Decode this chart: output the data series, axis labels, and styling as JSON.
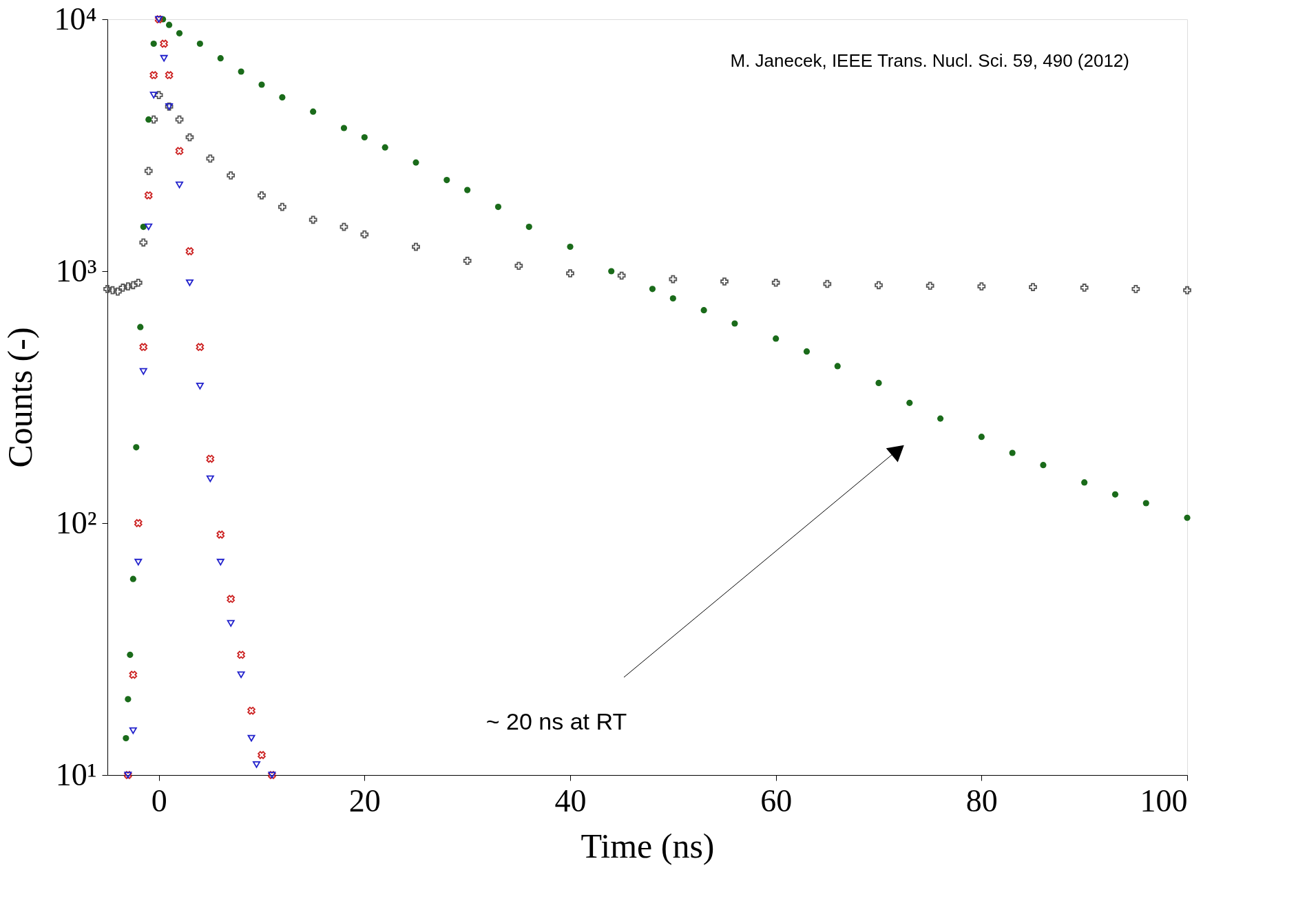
{
  "chart_data": {
    "type": "scatter",
    "xlabel": "Time (ns)",
    "ylabel": "Counts (-)",
    "xlim": [
      -5,
      100
    ],
    "xticks": [
      0,
      20,
      40,
      60,
      80,
      100
    ],
    "ylim": [
      10,
      10000
    ],
    "yticks": [
      {
        "value": 10,
        "label": "10¹"
      },
      {
        "value": 100,
        "label": "10²"
      },
      {
        "value": 1000,
        "label": "10³"
      },
      {
        "value": 10000,
        "label": "10⁴"
      }
    ],
    "log": "y",
    "grid": false,
    "series": [
      {
        "color": "#555555",
        "marker": "cross",
        "x": [
          -5,
          -4.5,
          -4,
          -3.5,
          -3,
          -2.5,
          -2,
          -1.5,
          -1,
          -0.5,
          0,
          1,
          2,
          3,
          5,
          7,
          10,
          12,
          15,
          18,
          20,
          25,
          30,
          35,
          40,
          45,
          50,
          55,
          60,
          65,
          70,
          75,
          80,
          85,
          90,
          95,
          100
        ],
        "values": [
          850,
          840,
          830,
          860,
          870,
          880,
          900,
          1300,
          2500,
          4000,
          5000,
          4500,
          4000,
          3400,
          2800,
          2400,
          2000,
          1800,
          1600,
          1500,
          1400,
          1250,
          1100,
          1050,
          980,
          960,
          930,
          910,
          900,
          890,
          880,
          875,
          870,
          865,
          860,
          850,
          840
        ]
      },
      {
        "color": "#1a6b1a",
        "marker": "circle",
        "x": [
          -3.2,
          -3,
          -2.8,
          -2.5,
          -2.2,
          -1.8,
          -1.5,
          -1,
          -0.5,
          0.4,
          1,
          2,
          4,
          6,
          8,
          10,
          12,
          15,
          18,
          20,
          22,
          25,
          28,
          30,
          33,
          36,
          40,
          44,
          48,
          50,
          53,
          56,
          60,
          63,
          66,
          70,
          73,
          76,
          80,
          83,
          86,
          90,
          93,
          96,
          100
        ],
        "values": [
          14,
          20,
          30,
          60,
          200,
          600,
          1500,
          4000,
          8000,
          10000,
          9500,
          8800,
          8000,
          7000,
          6200,
          5500,
          4900,
          4300,
          3700,
          3400,
          3100,
          2700,
          2300,
          2100,
          1800,
          1500,
          1250,
          1000,
          850,
          780,
          700,
          620,
          540,
          480,
          420,
          360,
          300,
          260,
          220,
          190,
          170,
          145,
          130,
          120,
          105
        ]
      },
      {
        "color": "#cc2222",
        "marker": "x",
        "x": [
          -3,
          -2.5,
          -2,
          -1.5,
          -1,
          -0.5,
          0,
          0.5,
          1,
          2,
          3,
          4,
          5,
          6,
          7,
          8,
          9,
          10,
          11
        ],
        "values": [
          10,
          25,
          100,
          500,
          2000,
          6000,
          10000,
          8000,
          6000,
          3000,
          1200,
          500,
          180,
          90,
          50,
          30,
          18,
          12,
          10
        ]
      },
      {
        "color": "#2222cc",
        "marker": "triangle",
        "x": [
          -3,
          -2.5,
          -2,
          -1.5,
          -1,
          -0.5,
          0,
          0.5,
          1,
          2,
          3,
          4,
          5,
          6,
          7,
          8,
          9,
          9.5,
          11
        ],
        "values": [
          10,
          15,
          70,
          400,
          1500,
          5000,
          10000,
          7000,
          4500,
          2200,
          900,
          350,
          150,
          70,
          40,
          25,
          14,
          11,
          10
        ]
      }
    ],
    "annotations": [
      "M. Janecek, IEEE Trans. Nucl. Sci. 59, 490 (2012)",
      "~ 20 ns at RT"
    ]
  }
}
